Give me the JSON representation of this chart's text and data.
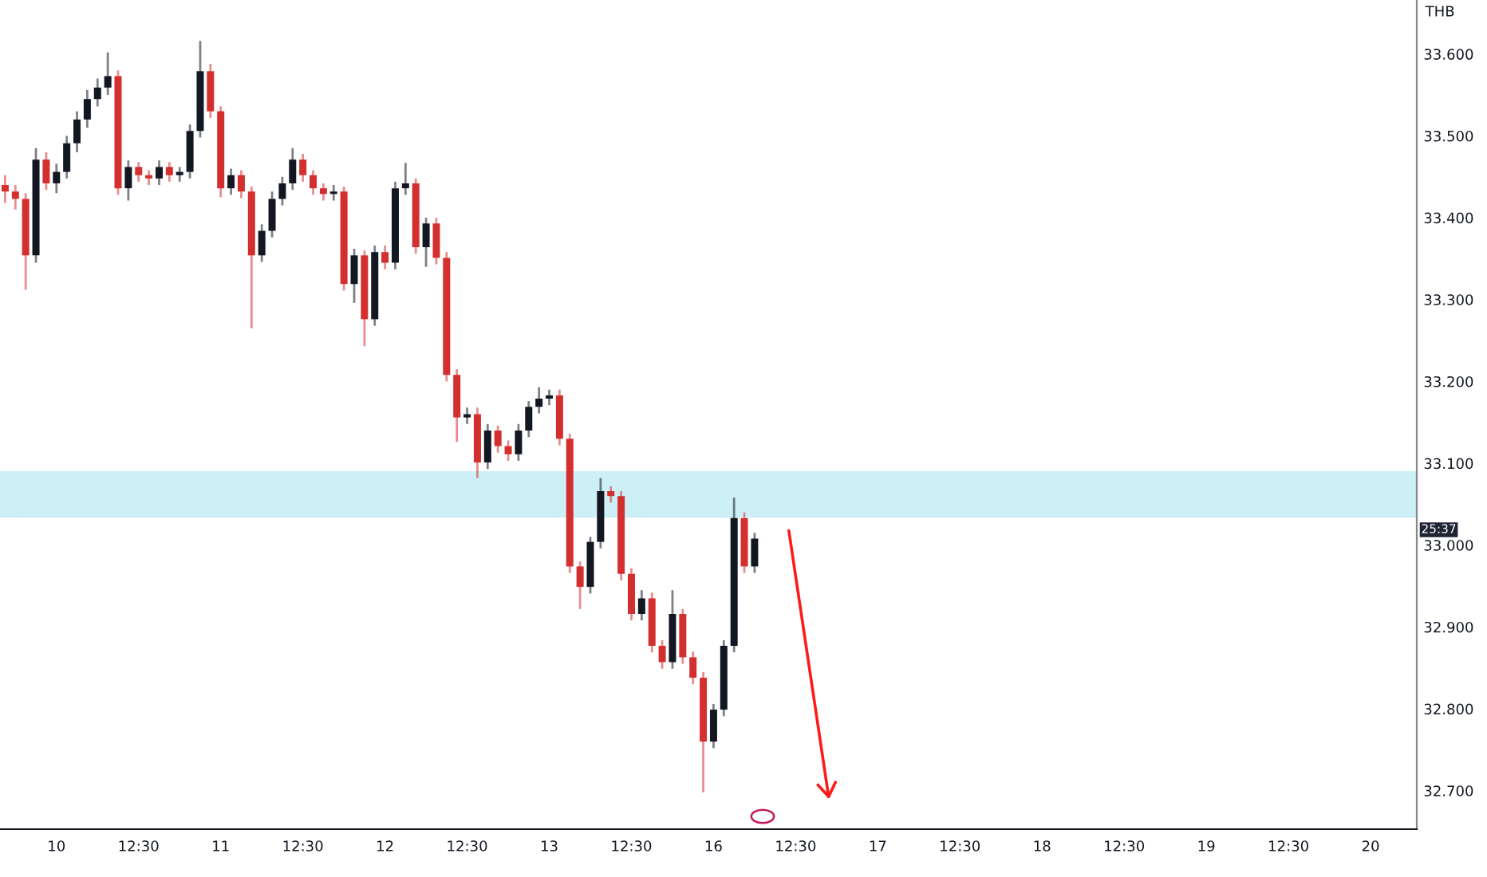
{
  "chart_data": {
    "type": "candlestick",
    "ylabel": "THB",
    "categories": [
      null,
      null,
      null,
      null,
      null,
      "10",
      null,
      null,
      null,
      null,
      null,
      null,
      null,
      "12:30",
      null,
      null,
      null,
      null,
      null,
      null,
      null,
      "11",
      null,
      null,
      null,
      null,
      null,
      null,
      null,
      "12:30",
      null,
      null,
      null,
      null,
      null,
      null,
      null,
      "12",
      null,
      null,
      null,
      null,
      null,
      null,
      null,
      "12:30",
      null,
      null,
      null,
      null,
      null,
      null,
      null,
      "13",
      null,
      null,
      null,
      null,
      null,
      null,
      null,
      "12:30",
      null,
      null,
      null,
      null,
      null,
      null,
      null,
      "16",
      null,
      null,
      null,
      null,
      null,
      null,
      null,
      "12:30",
      null,
      null,
      null,
      null,
      null,
      null,
      null,
      "17",
      null,
      null,
      null,
      null,
      null,
      null,
      null,
      "12:30",
      null,
      null,
      null,
      null,
      null,
      null,
      null,
      "18",
      null,
      null,
      null,
      null,
      null,
      null,
      null,
      "12:30",
      null,
      null,
      null,
      null,
      null,
      null,
      null,
      "19",
      null,
      null,
      null,
      null,
      null,
      null,
      null,
      "12:30",
      null,
      null,
      null,
      null,
      null,
      null,
      null,
      "20",
      null,
      null,
      null,
      null
    ],
    "ohlc": [
      [
        33.44,
        33.452,
        33.418,
        33.432
      ],
      [
        33.432,
        33.44,
        33.41,
        33.423
      ],
      [
        33.423,
        33.43,
        33.312,
        33.354
      ],
      [
        33.354,
        33.485,
        33.345,
        33.471
      ],
      [
        33.471,
        33.48,
        33.434,
        33.442
      ],
      [
        33.442,
        33.466,
        33.43,
        33.456
      ],
      [
        33.456,
        33.5,
        33.448,
        33.491
      ],
      [
        33.491,
        33.53,
        33.48,
        33.52
      ],
      [
        33.52,
        33.556,
        33.51,
        33.545
      ],
      [
        33.545,
        33.57,
        33.536,
        33.559
      ],
      [
        33.559,
        33.602,
        33.55,
        33.573
      ],
      [
        33.573,
        33.58,
        33.428,
        33.436
      ],
      [
        33.436,
        33.47,
        33.421,
        33.462
      ],
      [
        33.462,
        33.468,
        33.444,
        33.452
      ],
      [
        33.452,
        33.458,
        33.44,
        33.448
      ],
      [
        33.448,
        33.47,
        33.44,
        33.462
      ],
      [
        33.462,
        33.468,
        33.444,
        33.452
      ],
      [
        33.452,
        33.462,
        33.444,
        33.456
      ],
      [
        33.456,
        33.514,
        33.448,
        33.506
      ],
      [
        33.506,
        33.616,
        33.498,
        33.579
      ],
      [
        33.579,
        33.588,
        33.522,
        33.53
      ],
      [
        33.53,
        33.536,
        33.425,
        33.436
      ],
      [
        33.436,
        33.46,
        33.428,
        33.452
      ],
      [
        33.452,
        33.458,
        33.424,
        33.432
      ],
      [
        33.432,
        33.438,
        33.265,
        33.354
      ],
      [
        33.354,
        33.392,
        33.346,
        33.384
      ],
      [
        33.384,
        33.432,
        33.376,
        33.423
      ],
      [
        33.423,
        33.45,
        33.415,
        33.442
      ],
      [
        33.442,
        33.485,
        33.434,
        33.471
      ],
      [
        33.471,
        33.478,
        33.444,
        33.452
      ],
      [
        33.452,
        33.458,
        33.428,
        33.436
      ],
      [
        33.436,
        33.442,
        33.421,
        33.429
      ],
      [
        33.429,
        33.44,
        33.421,
        33.432
      ],
      [
        33.432,
        33.438,
        33.311,
        33.319
      ],
      [
        33.319,
        33.362,
        33.296,
        33.354
      ],
      [
        33.354,
        33.36,
        33.243,
        33.276
      ],
      [
        33.276,
        33.366,
        33.268,
        33.358
      ],
      [
        33.358,
        33.366,
        33.337,
        33.345
      ],
      [
        33.345,
        33.444,
        33.337,
        33.436
      ],
      [
        33.436,
        33.467,
        33.428,
        33.442
      ],
      [
        33.442,
        33.448,
        33.356,
        33.364
      ],
      [
        33.364,
        33.4,
        33.34,
        33.393
      ],
      [
        33.393,
        33.4,
        33.343,
        33.351
      ],
      [
        33.351,
        33.358,
        33.2,
        33.208
      ],
      [
        33.208,
        33.215,
        33.126,
        33.156
      ],
      [
        33.156,
        33.168,
        33.148,
        33.16
      ],
      [
        33.16,
        33.168,
        33.082,
        33.101
      ],
      [
        33.101,
        33.148,
        33.093,
        33.14
      ],
      [
        33.14,
        33.146,
        33.113,
        33.121
      ],
      [
        33.121,
        33.128,
        33.103,
        33.111
      ],
      [
        33.111,
        33.148,
        33.103,
        33.14
      ],
      [
        33.14,
        33.176,
        33.132,
        33.169
      ],
      [
        33.169,
        33.193,
        33.161,
        33.179
      ],
      [
        33.179,
        33.19,
        33.171,
        33.183
      ],
      [
        33.183,
        33.19,
        33.122,
        33.13
      ],
      [
        33.13,
        33.136,
        32.966,
        32.974
      ],
      [
        32.974,
        32.98,
        32.922,
        32.949
      ],
      [
        32.949,
        33.01,
        32.941,
        33.004
      ],
      [
        33.004,
        33.082,
        32.996,
        33.066
      ],
      [
        33.066,
        33.072,
        33.052,
        33.06
      ],
      [
        33.06,
        33.066,
        32.957,
        32.965
      ],
      [
        32.965,
        32.972,
        32.908,
        32.916
      ],
      [
        32.916,
        32.945,
        32.908,
        32.935
      ],
      [
        32.935,
        32.942,
        32.869,
        32.877
      ],
      [
        32.877,
        32.884,
        32.849,
        32.857
      ],
      [
        32.857,
        32.945,
        32.849,
        32.916
      ],
      [
        32.916,
        32.922,
        32.855,
        32.863
      ],
      [
        32.863,
        32.87,
        32.83,
        32.838
      ],
      [
        32.838,
        32.845,
        32.698,
        32.76
      ],
      [
        32.76,
        32.806,
        32.752,
        32.799
      ],
      [
        32.799,
        32.884,
        32.791,
        32.877
      ],
      [
        32.877,
        33.058,
        32.869,
        33.033
      ],
      [
        33.033,
        33.04,
        32.966,
        32.974
      ],
      [
        32.974,
        33.015,
        32.966,
        33.008
      ],
      null,
      null,
      null,
      null,
      null,
      null,
      null,
      null,
      null,
      null,
      null,
      null,
      null,
      null,
      null,
      null,
      null,
      null,
      null,
      null,
      null,
      null,
      null,
      null,
      null,
      null,
      null,
      null,
      null,
      null,
      null,
      null,
      null,
      null,
      null,
      null,
      null,
      null,
      null,
      null,
      null,
      null,
      null,
      null,
      null,
      null,
      null,
      null,
      null,
      null,
      null,
      null,
      null,
      null,
      null,
      null,
      null,
      null,
      null,
      null,
      null,
      null,
      null,
      null
    ],
    "ylim": [
      32.653,
      33.666
    ],
    "yticks": [
      {
        "value": 32.7,
        "label": "32.700"
      },
      {
        "value": 32.8,
        "label": "32.800"
      },
      {
        "value": 32.9,
        "label": "32.900"
      },
      {
        "value": 33.0,
        "label": "33.000"
      },
      {
        "value": 33.1,
        "label": "33.100"
      },
      {
        "value": 33.2,
        "label": "33.200"
      },
      {
        "value": 33.3,
        "label": "33.300"
      },
      {
        "value": 33.4,
        "label": "33.400"
      },
      {
        "value": 33.5,
        "label": "33.500"
      },
      {
        "value": 33.6,
        "label": "33.600"
      }
    ],
    "bands": [
      {
        "axis": "y",
        "from": 33.035,
        "to": 33.089,
        "color": "#ccf0f6"
      }
    ],
    "annotations": [
      "25:37"
    ],
    "grid": false
  }
}
